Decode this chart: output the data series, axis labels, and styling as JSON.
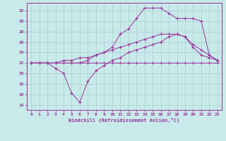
{
  "xlabel": "Windchill (Refroidissement éolien,°C)",
  "bg_color": "#c8eaea",
  "grid_color": "#aacccc",
  "line_color": "#993399",
  "xlim": [
    -0.5,
    23.5
  ],
  "ylim": [
    13,
    33.5
  ],
  "yticks": [
    14,
    16,
    18,
    20,
    22,
    24,
    26,
    28,
    30,
    32
  ],
  "xticks": [
    0,
    1,
    2,
    3,
    4,
    5,
    6,
    7,
    8,
    9,
    10,
    11,
    12,
    13,
    14,
    15,
    16,
    17,
    18,
    19,
    20,
    21,
    22,
    23
  ],
  "line1_x": [
    0,
    1,
    2,
    3,
    4,
    5,
    6,
    7,
    8,
    9,
    10,
    11,
    12,
    13,
    14,
    15,
    16,
    17,
    18,
    19,
    20,
    21,
    22,
    23
  ],
  "line1_y": [
    22,
    22,
    22,
    22,
    22,
    22,
    22,
    22,
    22,
    22,
    22,
    22,
    22,
    22,
    22,
    22,
    22,
    22,
    22,
    22,
    22,
    22,
    22,
    22
  ],
  "line2_x": [
    0,
    1,
    2,
    3,
    4,
    5,
    6,
    7,
    8,
    9,
    10,
    11,
    12,
    13,
    14,
    15,
    16,
    17,
    18,
    19,
    20,
    21,
    22,
    23
  ],
  "line2_y": [
    22,
    22,
    22,
    21,
    20,
    16.2,
    14.5,
    18.5,
    20.5,
    21.5,
    22.5,
    23,
    24,
    24.5,
    25,
    25.5,
    26,
    27,
    27.5,
    27,
    25,
    23.5,
    23,
    22.5
  ],
  "line3_x": [
    0,
    1,
    2,
    3,
    4,
    5,
    6,
    7,
    8,
    9,
    10,
    11,
    12,
    13,
    14,
    15,
    16,
    17,
    18,
    19,
    20,
    21,
    22,
    23
  ],
  "line3_y": [
    22,
    22,
    22,
    22,
    22.5,
    22.5,
    23,
    23,
    23.5,
    24,
    24.5,
    25,
    25.5,
    26,
    26.5,
    27,
    27.5,
    27.5,
    27.5,
    27,
    25.5,
    24.5,
    23.5,
    22.5
  ],
  "line4_x": [
    0,
    2,
    3,
    5,
    6,
    7,
    8,
    9,
    10,
    11,
    12,
    13,
    14,
    15,
    16,
    17,
    18,
    19,
    20,
    21,
    22,
    23
  ],
  "line4_y": [
    22,
    22,
    22,
    22,
    22,
    22.5,
    23.5,
    24,
    25,
    27.5,
    28.5,
    30.5,
    32.5,
    32.5,
    32.5,
    31.5,
    30.5,
    30.5,
    30.5,
    30,
    23.5,
    22.5
  ]
}
